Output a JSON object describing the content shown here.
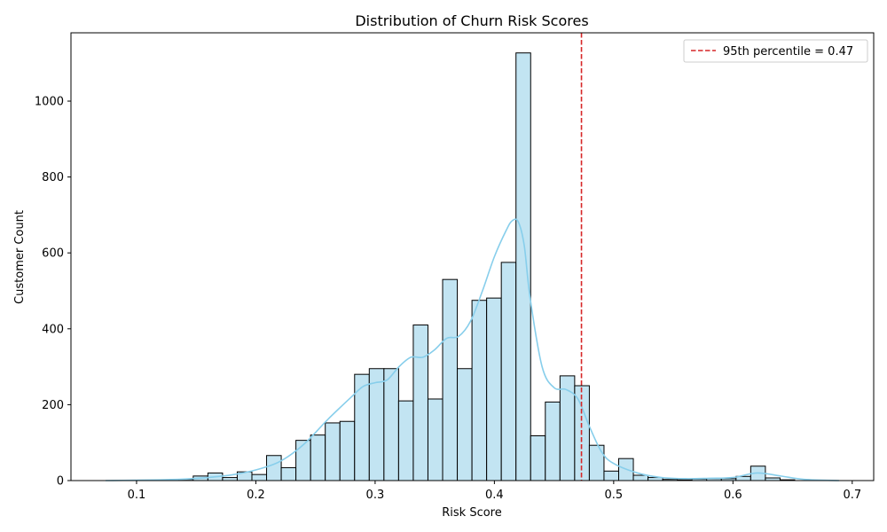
{
  "chart_data": {
    "type": "bar",
    "title": "Distribution of Churn Risk Scores",
    "xlabel": "Risk Score",
    "ylabel": "Customer Count",
    "xlim": [
      0.045,
      0.718
    ],
    "ylim": [
      0,
      1180
    ],
    "x_ticks": [
      0.1,
      0.2,
      0.3,
      0.4,
      0.5,
      0.6,
      0.7
    ],
    "x_tick_labels": [
      "0.1",
      "0.2",
      "0.3",
      "0.4",
      "0.5",
      "0.6",
      "0.7"
    ],
    "y_ticks": [
      0,
      200,
      400,
      600,
      800,
      1000
    ],
    "y_tick_labels": [
      "0",
      "200",
      "400",
      "600",
      "800",
      "1000"
    ],
    "grid": false,
    "legend_position": "top-right",
    "bar_fill_color": "#c2e4f2",
    "bar_edge_color": "#000000",
    "kde_color": "#87ceeb",
    "reference_line_color": "#d62728",
    "histogram": {
      "bin_edges": [
        0.0737,
        0.086,
        0.0983,
        0.1106,
        0.1229,
        0.1352,
        0.1475,
        0.1598,
        0.1721,
        0.1844,
        0.1967,
        0.209,
        0.2213,
        0.2336,
        0.2459,
        0.2582,
        0.2705,
        0.2828,
        0.2951,
        0.3074,
        0.3197,
        0.332,
        0.3443,
        0.3566,
        0.3689,
        0.3812,
        0.3935,
        0.4058,
        0.4181,
        0.4304,
        0.4427,
        0.455,
        0.4673,
        0.4796,
        0.4919,
        0.5042,
        0.5165,
        0.5288,
        0.5411,
        0.5534,
        0.5657,
        0.578,
        0.5903,
        0.6026,
        0.6149,
        0.6272,
        0.6395,
        0.6518,
        0.6641,
        0.6764,
        0.6887
      ],
      "counts": [
        0,
        0,
        0,
        0,
        0,
        3,
        12,
        20,
        8,
        23,
        16,
        66,
        34,
        106,
        120,
        152,
        156,
        280,
        295,
        295,
        210,
        410,
        215,
        530,
        295,
        475,
        481,
        575,
        1127,
        118,
        207,
        276,
        250,
        93,
        25,
        58,
        14,
        8,
        3,
        2,
        4,
        5,
        5,
        11,
        38,
        7,
        2,
        0,
        0,
        0
      ]
    },
    "kde": {
      "x": [
        0.074,
        0.1,
        0.12,
        0.14,
        0.16,
        0.18,
        0.2,
        0.22,
        0.24,
        0.26,
        0.28,
        0.29,
        0.3,
        0.31,
        0.32,
        0.33,
        0.34,
        0.35,
        0.36,
        0.37,
        0.38,
        0.39,
        0.4,
        0.41,
        0.415,
        0.42,
        0.425,
        0.43,
        0.44,
        0.45,
        0.46,
        0.47,
        0.48,
        0.49,
        0.5,
        0.52,
        0.54,
        0.56,
        0.58,
        0.6,
        0.62,
        0.64,
        0.66,
        0.689
      ],
      "y": [
        0,
        1,
        2,
        4,
        8,
        15,
        28,
        50,
        95,
        160,
        220,
        248,
        258,
        265,
        300,
        325,
        325,
        345,
        375,
        380,
        420,
        500,
        590,
        660,
        685,
        682,
        620,
        480,
        300,
        245,
        240,
        215,
        140,
        75,
        45,
        20,
        8,
        5,
        6,
        8,
        20,
        12,
        3,
        0
      ]
    },
    "reference_line": {
      "x": 0.473,
      "label": "95th percentile = 0.47"
    }
  }
}
